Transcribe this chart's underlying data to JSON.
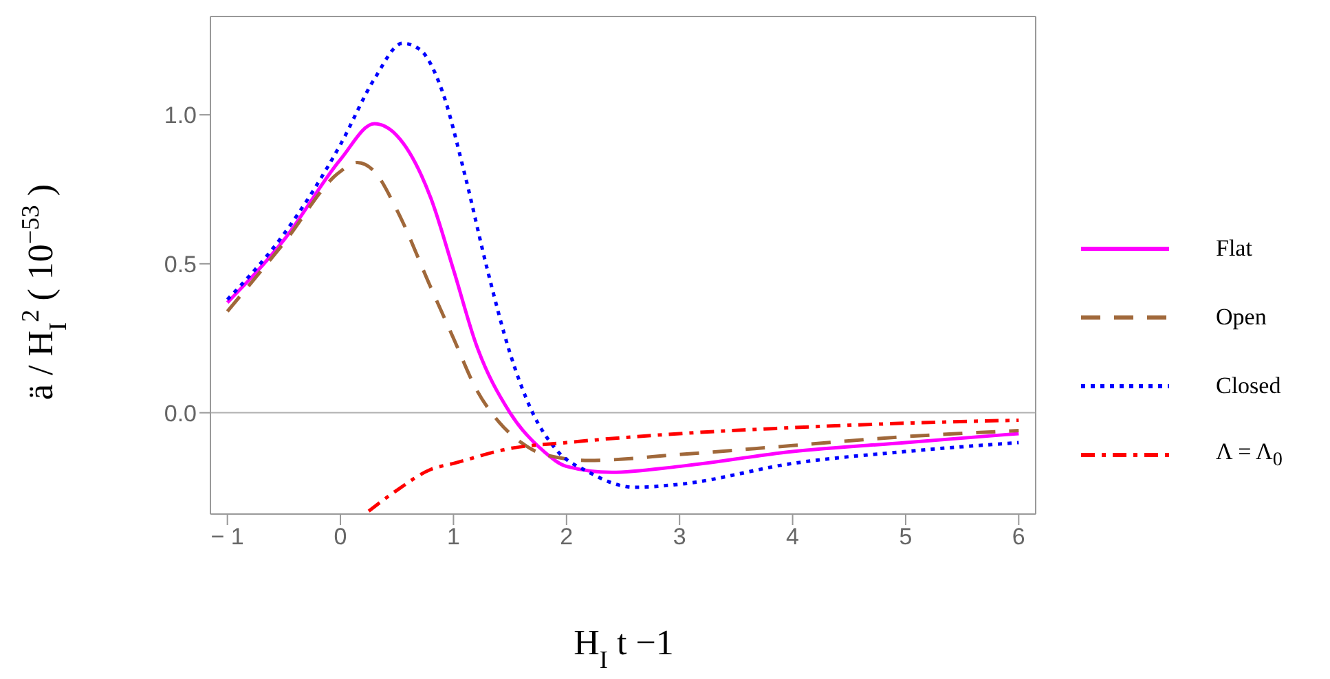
{
  "chart_data": {
    "type": "line",
    "xlabel": "H$_{I}$ t −1",
    "ylabel": "ä / H$_{I}$$^{2}$ ( 10$^{−53}$ )",
    "xlim": [
      -1.15,
      6.15
    ],
    "ylim": [
      -0.34,
      1.33
    ],
    "xticks": [
      -1,
      0,
      1,
      2,
      3,
      4,
      5,
      6
    ],
    "yticks": [
      {
        "value": 0,
        "label": "0.0"
      },
      0.5,
      {
        "value": 1,
        "label": "1.0"
      }
    ],
    "grid": false,
    "legend": "right",
    "marker": "none",
    "ref_lines": [
      {
        "axis": "y",
        "value": 0,
        "color": "#b0b0b0"
      }
    ],
    "series": [
      {
        "name": "Flat",
        "color": "#ff00ff",
        "line_style": "solid",
        "x": [
          -1,
          -0.5,
          0,
          0.3,
          0.5,
          0.8,
          1,
          1.2,
          1.5,
          1.8,
          2,
          2.4,
          3,
          4,
          5,
          6
        ],
        "values": [
          0.37,
          0.58,
          0.85,
          0.97,
          0.93,
          0.72,
          0.48,
          0.23,
          0,
          -0.13,
          -0.18,
          -0.2,
          -0.18,
          -0.13,
          -0.1,
          -0.07
        ]
      },
      {
        "name": "Open",
        "color": "#a0683a",
        "line_style": "dashed",
        "x": [
          -1,
          -0.5,
          0,
          0.15,
          0.3,
          0.5,
          0.8,
          1,
          1.2,
          1.4,
          1.6,
          1.8,
          2.2,
          3,
          4,
          5,
          6
        ],
        "values": [
          0.34,
          0.57,
          0.81,
          0.84,
          0.81,
          0.68,
          0.42,
          0.25,
          0.08,
          -0.03,
          -0.1,
          -0.14,
          -0.16,
          -0.14,
          -0.11,
          -0.08,
          -0.06
        ]
      },
      {
        "name": "Closed",
        "color": "#0000ff",
        "line_style": "dotted",
        "x": [
          -1,
          -0.5,
          0,
          0.3,
          0.55,
          0.7,
          0.9,
          1.1,
          1.3,
          1.5,
          1.7,
          1.9,
          2.2,
          2.6,
          3,
          4,
          5,
          6
        ],
        "values": [
          0.38,
          0.6,
          0.9,
          1.12,
          1.24,
          1.22,
          1.08,
          0.8,
          0.48,
          0.2,
          0,
          -0.12,
          -0.2,
          -0.25,
          -0.24,
          -0.17,
          -0.13,
          -0.1
        ]
      },
      {
        "name": "Λ = Λ$_{0}$",
        "color": "#ff0000",
        "line_style": "dashdot",
        "x": [
          0.25,
          0.5,
          0.8,
          1,
          1.5,
          2,
          3,
          4,
          5,
          6
        ],
        "values": [
          -0.33,
          -0.26,
          -0.19,
          -0.17,
          -0.12,
          -0.1,
          -0.07,
          -0.05,
          -0.035,
          -0.025
        ]
      }
    ]
  }
}
